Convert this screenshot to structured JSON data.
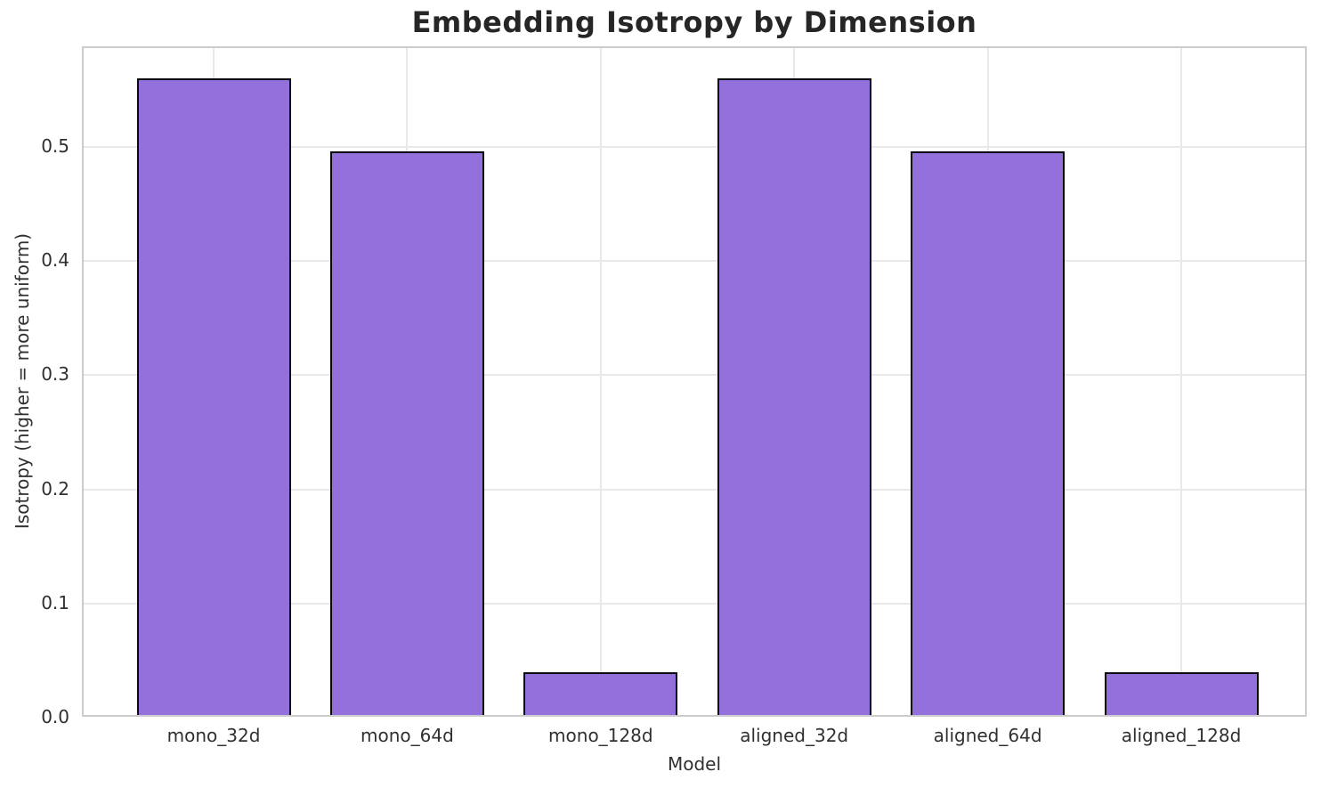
{
  "chart_data": {
    "type": "bar",
    "title": "Embedding Isotropy by Dimension",
    "xlabel": "Model",
    "ylabel": "Isotropy (higher = more uniform)",
    "categories": [
      "mono_32d",
      "mono_64d",
      "mono_128d",
      "aligned_32d",
      "aligned_64d",
      "aligned_128d"
    ],
    "values": [
      0.559,
      0.495,
      0.039,
      0.559,
      0.495,
      0.039
    ],
    "yticks": [
      0.0,
      0.1,
      0.2,
      0.3,
      0.4,
      0.5
    ],
    "ytick_labels": [
      "0.0",
      "0.1",
      "0.2",
      "0.3",
      "0.4",
      "0.5"
    ],
    "ylim": [
      0,
      0.584
    ],
    "grid": true,
    "legend": "none",
    "bar_color": "#9370DB",
    "bar_edge_color": "#0a0a0a",
    "grid_color": "#e9e9e9",
    "plot_border_color": "#cccccc",
    "background_color": "#ffffff",
    "title_color": "#262626",
    "tick_color": "#303030"
  }
}
